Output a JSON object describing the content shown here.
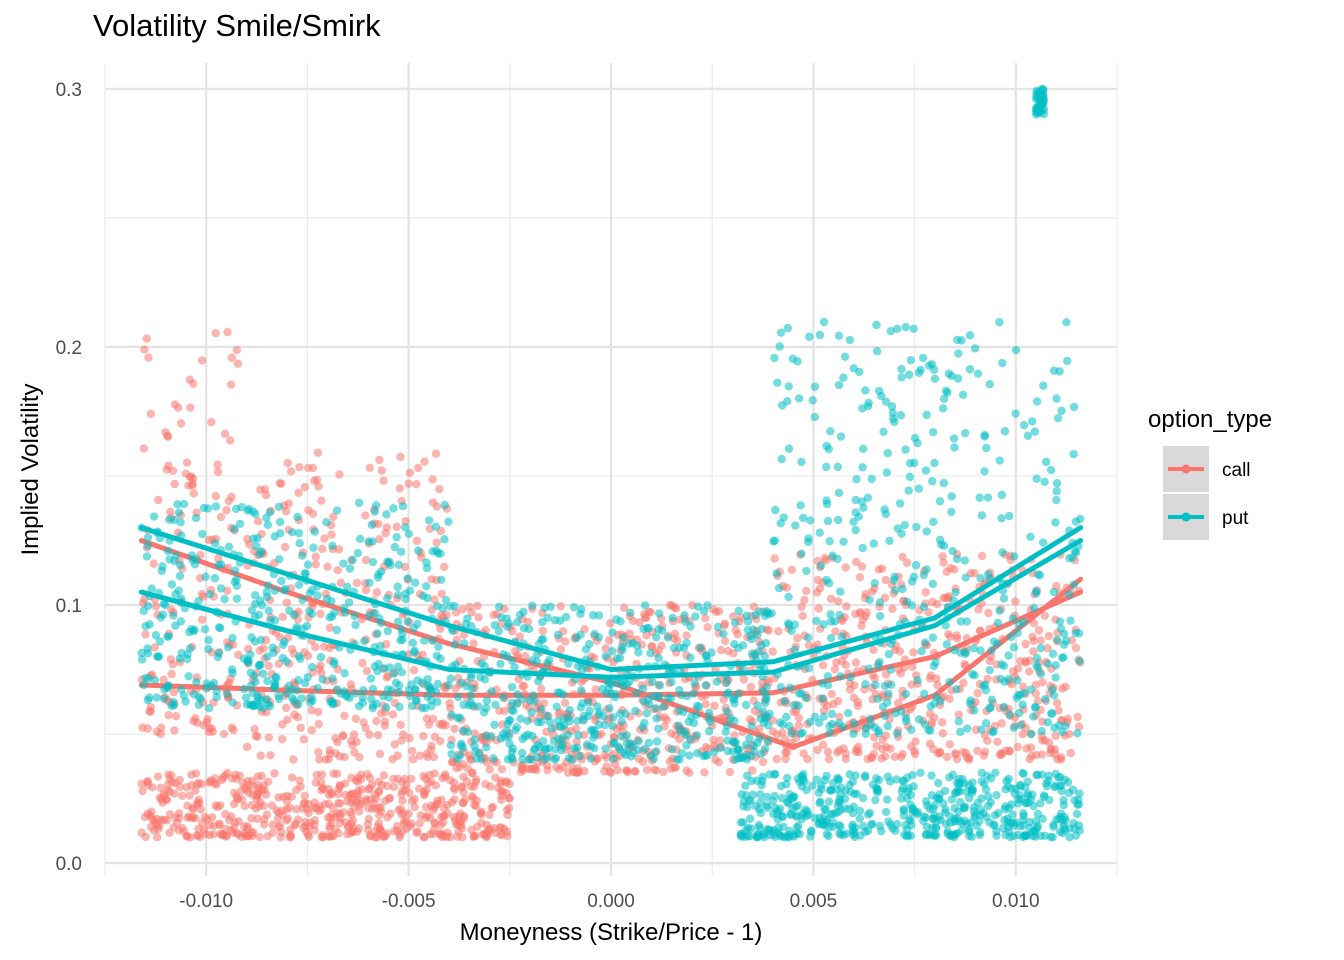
{
  "chart_data": {
    "type": "scatter",
    "title": "Volatility Smile/Smirk",
    "xlabel": "Moneyness (Strike/Price - 1)",
    "ylabel": "Implied Volatility",
    "xlim": [
      -0.0125,
      0.0125
    ],
    "ylim": [
      -0.005,
      0.31
    ],
    "x_ticks": [
      -0.01,
      -0.005,
      0.0,
      0.005,
      0.01
    ],
    "x_tick_labels": [
      "-0.010",
      "-0.005",
      "0.000",
      "0.005",
      "0.010"
    ],
    "y_ticks": [
      0.0,
      0.1,
      0.2,
      0.3
    ],
    "y_tick_labels": [
      "0.0",
      "0.1",
      "0.2",
      "0.3"
    ],
    "grid": true,
    "legend": {
      "title": "option_type",
      "position": "right"
    },
    "series": [
      {
        "name": "call",
        "color": "#F8766D",
        "points_description_regions": [
          {
            "x_range": [
              -0.0116,
              -0.0092
            ],
            "y_range": [
              0.05,
              0.21
            ]
          },
          {
            "x_range": [
              -0.009,
              -0.004
            ],
            "y_range": [
              0.04,
              0.16
            ]
          },
          {
            "x_range": [
              -0.004,
              0.004
            ],
            "y_range": [
              0.035,
              0.1
            ]
          },
          {
            "x_range": [
              0.004,
              0.0116
            ],
            "y_range": [
              0.04,
              0.12
            ]
          },
          {
            "x_range": [
              -0.0116,
              -0.0025
            ],
            "y_range": [
              0.01,
              0.035
            ]
          }
        ],
        "trend_lines": [
          {
            "x": [
              -0.0116,
              -0.008,
              -0.004,
              0.0,
              0.004,
              0.008,
              0.0116
            ],
            "y": [
              0.069,
              0.067,
              0.065,
              0.065,
              0.066,
              0.08,
              0.105
            ]
          },
          {
            "x": [
              -0.0116,
              -0.008,
              -0.004,
              0.0,
              0.0045,
              0.008,
              0.0116
            ],
            "y": [
              0.125,
              0.105,
              0.085,
              0.07,
              0.045,
              0.065,
              0.11
            ]
          }
        ]
      },
      {
        "name": "put",
        "color": "#00BFC4",
        "points_description_regions": [
          {
            "x_range": [
              -0.0116,
              -0.004
            ],
            "y_range": [
              0.06,
              0.14
            ]
          },
          {
            "x_range": [
              -0.004,
              0.004
            ],
            "y_range": [
              0.04,
              0.1
            ]
          },
          {
            "x_range": [
              0.004,
              0.0116
            ],
            "y_range": [
              0.05,
              0.21
            ]
          },
          {
            "x_range": [
              0.0032,
              0.0116
            ],
            "y_range": [
              0.01,
              0.035
            ]
          },
          {
            "x_range": [
              0.0105,
              0.0107
            ],
            "y_range": [
              0.29,
              0.3
            ]
          }
        ],
        "trend_lines": [
          {
            "x": [
              -0.0116,
              -0.008,
              -0.004,
              0.0,
              0.004,
              0.008,
              0.0116
            ],
            "y": [
              0.13,
              0.112,
              0.092,
              0.075,
              0.078,
              0.095,
              0.13
            ]
          },
          {
            "x": [
              -0.0116,
              -0.008,
              -0.004,
              0.0,
              0.004,
              0.008,
              0.0116
            ],
            "y": [
              0.105,
              0.09,
              0.075,
              0.072,
              0.074,
              0.092,
              0.125
            ]
          }
        ]
      }
    ]
  }
}
